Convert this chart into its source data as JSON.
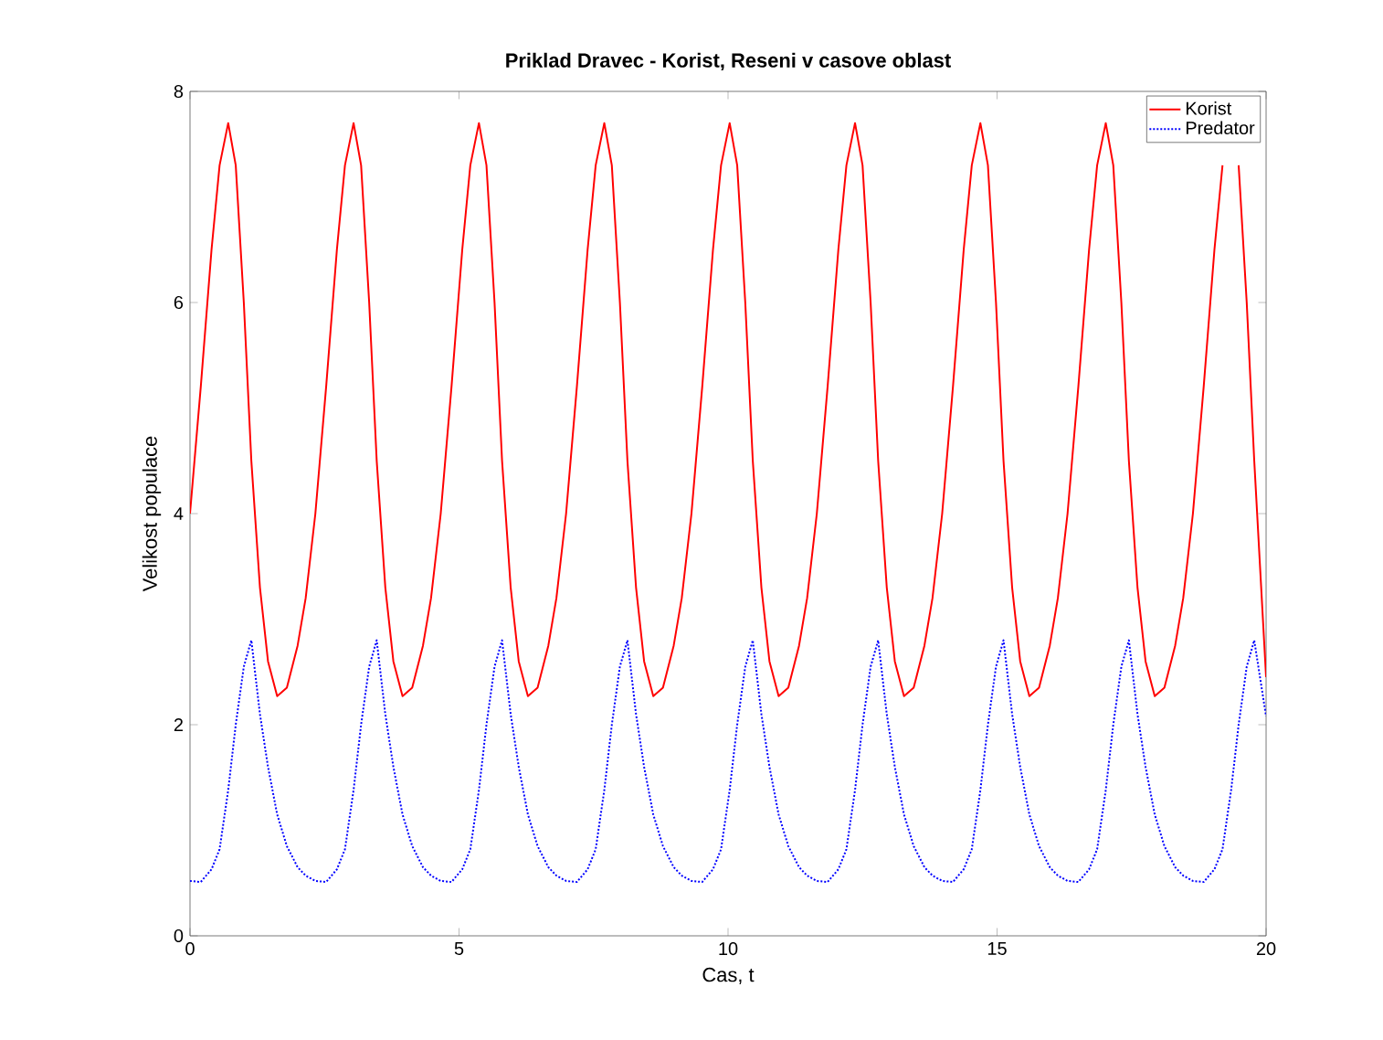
{
  "chart_data": {
    "type": "line",
    "title": "Priklad Dravec - Korist, Reseni v casove oblast",
    "xlabel": "Cas, t",
    "ylabel": "Velikost populace",
    "x": [
      0,
      0.2,
      0.4,
      0.55,
      0.71,
      0.85,
      1.0,
      1.14,
      1.3,
      1.45,
      1.62,
      1.8,
      2.0,
      2.15,
      2.33,
      2.53,
      2.73,
      2.88,
      3.04,
      3.18,
      3.33,
      3.47,
      3.63,
      3.78,
      3.95,
      4.13,
      4.33,
      4.48,
      4.66,
      4.86,
      5.06,
      5.21,
      5.37,
      5.51,
      5.66,
      5.8,
      5.96,
      6.11,
      6.28,
      6.46,
      6.66,
      6.81,
      6.99,
      7.19,
      7.39,
      7.54,
      7.7,
      7.84,
      7.99,
      8.13,
      8.29,
      8.44,
      8.61,
      8.79,
      8.99,
      9.14,
      9.32,
      9.52,
      9.72,
      9.87,
      10.03,
      10.17,
      10.32,
      10.46,
      10.62,
      10.77,
      10.94,
      11.12,
      11.32,
      11.47,
      11.65,
      11.85,
      12.05,
      12.2,
      12.36,
      12.5,
      12.65,
      12.79,
      12.95,
      13.1,
      13.27,
      13.45,
      13.65,
      13.8,
      13.98,
      14.18,
      14.38,
      14.53,
      14.69,
      14.83,
      14.98,
      15.12,
      15.28,
      15.43,
      15.6,
      15.78,
      15.98,
      16.13,
      16.31,
      16.51,
      16.71,
      16.86,
      17.02,
      17.16,
      17.31,
      17.45,
      17.61,
      17.76,
      17.93,
      18.11,
      18.31,
      18.46,
      18.64,
      18.84,
      19.04,
      19.19,
      19.35,
      19.49,
      19.64,
      19.78,
      20
    ],
    "series": [
      {
        "name": "Korist",
        "color": "#ff0000",
        "line_style": "solid",
        "values": [
          4.0,
          5.2,
          6.5,
          7.3,
          7.7,
          7.3,
          6.0,
          4.5,
          3.3,
          2.6,
          2.27,
          2.35,
          2.75,
          3.2,
          4.0,
          5.2,
          6.5,
          7.3,
          7.7,
          7.3,
          6.0,
          4.5,
          3.3,
          2.6,
          2.27,
          2.35,
          2.75,
          3.2,
          4.0,
          5.2,
          6.5,
          7.3,
          7.7,
          7.3,
          6.0,
          4.5,
          3.3,
          2.6,
          2.27,
          2.35,
          2.75,
          3.2,
          4.0,
          5.2,
          6.5,
          7.3,
          7.7,
          7.3,
          6.0,
          4.5,
          3.3,
          2.6,
          2.27,
          2.35,
          2.75,
          3.2,
          4.0,
          5.2,
          6.5,
          7.3,
          7.7,
          7.3,
          6.0,
          4.5,
          3.3,
          2.6,
          2.27,
          2.35,
          2.75,
          3.2,
          4.0,
          5.2,
          6.5,
          7.3,
          7.7,
          7.3,
          6.0,
          4.5,
          3.3,
          2.6,
          2.27,
          2.35,
          2.75,
          3.2,
          4.0,
          5.2,
          6.5,
          7.3,
          7.7,
          7.3,
          6.0,
          4.5,
          3.3,
          2.6,
          2.27,
          2.35,
          2.75,
          3.2,
          4.0,
          5.2,
          6.5,
          7.3,
          7.7,
          7.3,
          6.0,
          4.5,
          3.3,
          2.6,
          2.27,
          2.35,
          2.75,
          3.2,
          4.0,
          5.2,
          6.5,
          7.3,
          null,
          7.3,
          6.0,
          4.5,
          2.45
        ]
      },
      {
        "name": "Predator",
        "color": "#0000ff",
        "line_style": "dotted",
        "values": [
          0.52,
          0.51,
          0.63,
          0.82,
          1.38,
          2.0,
          2.55,
          2.8,
          2.1,
          1.6,
          1.15,
          0.85,
          0.65,
          0.57,
          0.52,
          0.51,
          0.63,
          0.82,
          1.38,
          2.0,
          2.55,
          2.8,
          2.1,
          1.6,
          1.15,
          0.85,
          0.65,
          0.57,
          0.52,
          0.51,
          0.63,
          0.82,
          1.38,
          2.0,
          2.55,
          2.8,
          2.1,
          1.6,
          1.15,
          0.85,
          0.65,
          0.57,
          0.52,
          0.51,
          0.63,
          0.82,
          1.38,
          2.0,
          2.55,
          2.8,
          2.1,
          1.6,
          1.15,
          0.85,
          0.65,
          0.57,
          0.52,
          0.51,
          0.63,
          0.82,
          1.38,
          2.0,
          2.55,
          2.8,
          2.1,
          1.6,
          1.15,
          0.85,
          0.65,
          0.57,
          0.52,
          0.51,
          0.63,
          0.82,
          1.38,
          2.0,
          2.55,
          2.8,
          2.1,
          1.6,
          1.15,
          0.85,
          0.65,
          0.57,
          0.52,
          0.51,
          0.63,
          0.82,
          1.38,
          2.0,
          2.55,
          2.8,
          2.1,
          1.6,
          1.15,
          0.85,
          0.65,
          0.57,
          0.52,
          0.51,
          0.63,
          0.82,
          1.38,
          2.0,
          2.55,
          2.8,
          2.1,
          1.6,
          1.15,
          0.85,
          0.65,
          0.57,
          0.52,
          0.51,
          0.63,
          0.82,
          1.38,
          2.0,
          2.55,
          2.8,
          2.08
        ]
      }
    ],
    "xlim": [
      0,
      20
    ],
    "ylim": [
      0,
      8
    ],
    "xticks": [
      0,
      5,
      10,
      15,
      20
    ],
    "yticks": [
      0,
      2,
      4,
      6,
      8
    ],
    "grid": false,
    "legend": "top right"
  }
}
